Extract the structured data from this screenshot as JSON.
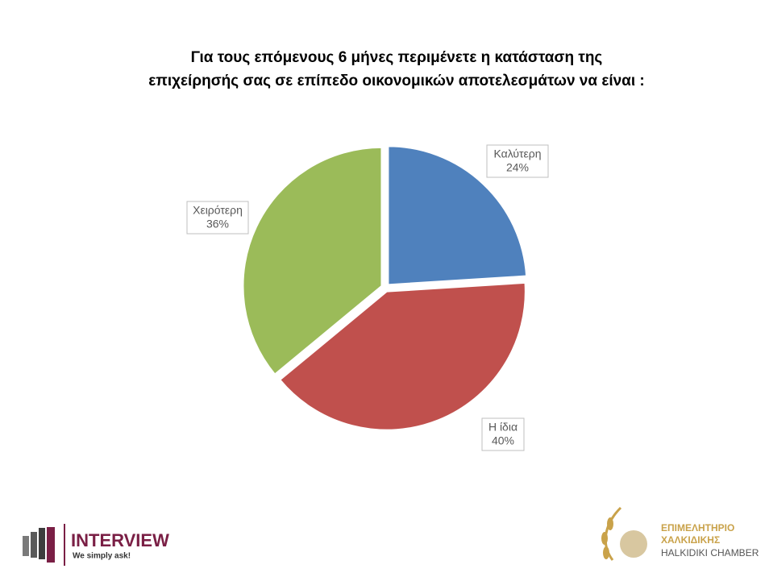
{
  "chart_data": {
    "type": "pie",
    "title": [
      "Για τους επόμενους 6 μήνες περιμένετε η κατάσταση της",
      "επιχείρησής σας σε επίπεδο οικονομικών αποτελεσμάτων να είναι :"
    ],
    "categories": [
      "Καλύτερη",
      "Η ίδια",
      "Χειρότερη"
    ],
    "values": [
      24,
      40,
      36
    ],
    "value_labels": [
      "24%",
      "40%",
      "36%"
    ],
    "colors": [
      "#4f81bd",
      "#c0504d",
      "#9bbb59"
    ]
  },
  "footer": {
    "left_logo": {
      "name": "INTERVIEW",
      "tagline": "We simply ask!"
    },
    "right_logo": {
      "line1": "ΕΠΙΜΕΛΗΤΗΡΙΟ",
      "line2": "ΧΑΛΚΙΔΙΚΗΣ",
      "line3": "HALKIDIKI CHAMBER"
    }
  }
}
